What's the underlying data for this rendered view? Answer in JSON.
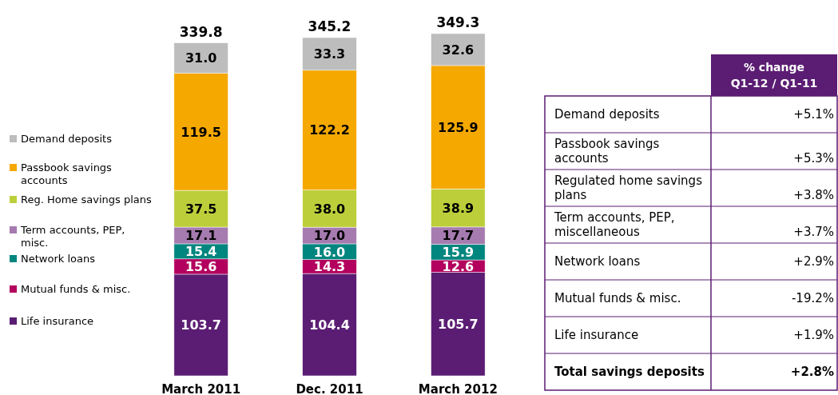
{
  "chart_data": [
    {
      "type": "bar",
      "stacked": true,
      "legend": "left",
      "categories": [
        "March 2011",
        "Dec. 2011",
        "March 2012"
      ],
      "totals": [
        "339.8",
        "345.2",
        "349.3"
      ],
      "series": [
        {
          "name": "Life insurance",
          "color": "#5b1d73",
          "values": [
            103.7,
            104.4,
            105.7
          ],
          "value_labels": [
            "103.7",
            "104.4",
            "105.7"
          ]
        },
        {
          "name": "Mutual funds & misc.",
          "color": "#b3005e",
          "values": [
            15.6,
            14.3,
            12.6
          ],
          "value_labels": [
            "15.6",
            "14.3",
            "12.6"
          ]
        },
        {
          "name": "Network loans",
          "color": "#00867f",
          "values": [
            15.4,
            16.0,
            15.9
          ],
          "value_labels": [
            "15.4",
            "16.0",
            "15.9"
          ]
        },
        {
          "name": "Term accounts, PEP, misc.",
          "color": "#a67bb0",
          "values": [
            17.1,
            17.0,
            17.7
          ],
          "value_labels": [
            "17.1",
            "17.0",
            "17.7"
          ]
        },
        {
          "name": "Reg. Home savings plans",
          "color": "#bccf3a",
          "values": [
            37.5,
            38.0,
            38.9
          ],
          "value_labels": [
            "37.5",
            "38.0",
            "38.9"
          ]
        },
        {
          "name": "Passbook savings accounts",
          "color": "#f5a800",
          "values": [
            119.5,
            122.2,
            125.9
          ],
          "value_labels": [
            "119.5",
            "122.2",
            "125.9"
          ]
        },
        {
          "name": "Demand deposits",
          "color": "#bdbdbd",
          "values": [
            31.0,
            33.3,
            32.6
          ],
          "value_labels": [
            "31.0",
            "33.3",
            "32.6"
          ]
        }
      ]
    },
    {
      "type": "other",
      "title": "% change Q1-12 / Q1-11",
      "categories": [
        "Demand deposits",
        "Passbook savings accounts",
        "Regulated home savings plans",
        "Term accounts, PEP, miscellaneous",
        "Network loans",
        "Mutual funds & misc.",
        "Life insurance",
        "Total savings deposits"
      ],
      "value_labels": [
        "+5.1%",
        "+5.3%",
        "+3.8%",
        "+3.7%",
        "+2.9%",
        "-19.2%",
        "+1.9%",
        "+2.8%"
      ],
      "color": "#5b1d73"
    }
  ]
}
